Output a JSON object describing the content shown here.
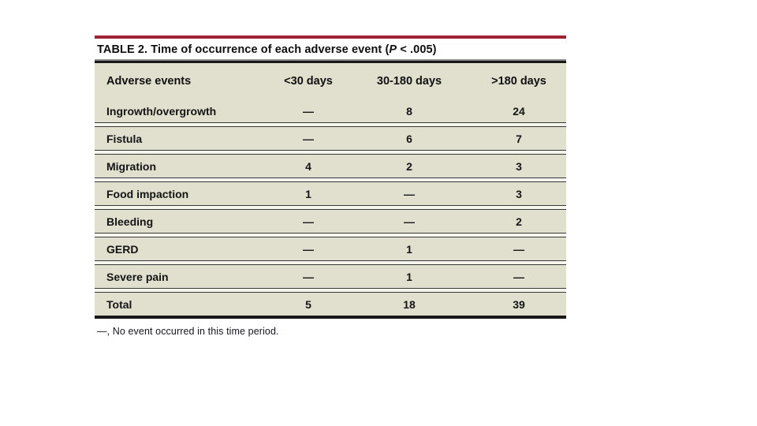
{
  "colors": {
    "accent_bar": "#9e2234",
    "table_body_bg": "#e1e0cf",
    "rule_dark": "#181818"
  },
  "table": {
    "title": {
      "prefix": "TABLE 2. Time of occurrence of each adverse event (",
      "stat_symbol": "P",
      "suffix": " < .005)"
    },
    "columns": [
      "Adverse events",
      "<30 days",
      "30-180 days",
      ">180 days"
    ],
    "rows": [
      {
        "label": "Ingrowth/overgrowth",
        "values": [
          "—",
          "8",
          "24"
        ]
      },
      {
        "label": "Fistula",
        "values": [
          "—",
          "6",
          "7"
        ]
      },
      {
        "label": "Migration",
        "values": [
          "4",
          "2",
          "3"
        ]
      },
      {
        "label": "Food impaction",
        "values": [
          "1",
          "—",
          "3"
        ]
      },
      {
        "label": "Bleeding",
        "values": [
          "—",
          "—",
          "2"
        ]
      },
      {
        "label": "GERD",
        "values": [
          "—",
          "1",
          "—"
        ]
      },
      {
        "label": "Severe pain",
        "values": [
          "—",
          "1",
          "—"
        ]
      },
      {
        "label": "Total",
        "values": [
          "5",
          "18",
          "39"
        ]
      }
    ],
    "footnote": "—, No event occurred in this time period."
  },
  "chart_data": {
    "type": "table",
    "title": "TABLE 2. Time of occurrence of each adverse event (P < .005)",
    "categories": [
      "<30 days",
      "30-180 days",
      ">180 days"
    ],
    "series": [
      {
        "name": "Ingrowth/overgrowth",
        "values": [
          null,
          8,
          24
        ]
      },
      {
        "name": "Fistula",
        "values": [
          null,
          6,
          7
        ]
      },
      {
        "name": "Migration",
        "values": [
          4,
          2,
          3
        ]
      },
      {
        "name": "Food impaction",
        "values": [
          1,
          null,
          3
        ]
      },
      {
        "name": "Bleeding",
        "values": [
          null,
          null,
          2
        ]
      },
      {
        "name": "GERD",
        "values": [
          null,
          1,
          null
        ]
      },
      {
        "name": "Severe pain",
        "values": [
          null,
          1,
          null
        ]
      },
      {
        "name": "Total",
        "values": [
          5,
          18,
          39
        ]
      }
    ]
  }
}
